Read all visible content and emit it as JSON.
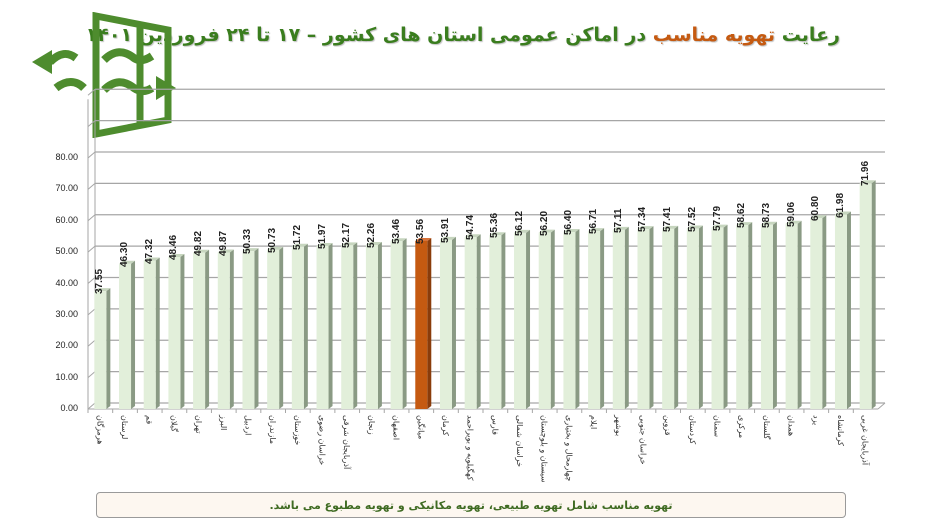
{
  "header": {
    "title_part1": "رعایت",
    "title_accent": "تهویه مناسب",
    "title_part2": "در اماکن عمومی استان های کشور  –  ۱۷ تا ۲۴ فروردین ۱۴۰۱"
  },
  "logo": {
    "icon": "ventilation-window-icon",
    "color": "#4e8c2e"
  },
  "footer": {
    "note": "تهویه مناسب شامل تهویه طبیعی، تهویه مکانیکی و تهویه مطبوع می باشد."
  },
  "colors": {
    "bar_default": "#e2efda",
    "bar_side": "#8a9a84",
    "bar_highlight": "#c55a11",
    "bar_highlight_side": "#8a3c0b",
    "grid": "#a6a6a6",
    "title_green": "#3a7d1e",
    "title_accent": "#c55a11"
  },
  "chart_data": {
    "type": "bar",
    "title": "رعایت تهویه مناسب در اماکن عمومی استان های کشور – ۱۷ تا ۲۴ فروردین ۱۴۰۱",
    "xlabel": "",
    "ylabel": "",
    "ylim": [
      0,
      100
    ],
    "yticks": [
      "0.00",
      "10.00",
      "20.00",
      "30.00",
      "40.00",
      "50.00",
      "60.00",
      "70.00",
      "80.00"
    ],
    "grid": true,
    "legend": null,
    "highlight_index": 13,
    "categories": [
      "هرمزگان",
      "لرستان",
      "قم",
      "گیلان",
      "تهران",
      "البرز",
      "اردبیل",
      "مازندران",
      "خوزستان",
      "خراسان رضوی",
      "آذربایجان شرقی",
      "زنجان",
      "اصفهان",
      "میانگین",
      "کرمان",
      "کهگیلویه و بویراحمد",
      "فارس",
      "خراسان شمالی",
      "سیستان و بلوچستان",
      "چهارمحال و بختیاری",
      "ایلام",
      "بوشهر",
      "خراسان جنوبی",
      "قزوین",
      "کردستان",
      "سمنان",
      "مرکزی",
      "گلستان",
      "همدان",
      "یزد",
      "کرمانشاه",
      "آذربایجان غربی"
    ],
    "values": [
      37.55,
      46.3,
      47.32,
      48.46,
      49.82,
      49.87,
      50.33,
      50.73,
      51.72,
      51.97,
      52.17,
      52.26,
      53.46,
      53.56,
      53.91,
      54.74,
      55.36,
      56.12,
      56.2,
      56.4,
      56.71,
      57.11,
      57.34,
      57.41,
      57.52,
      57.79,
      58.62,
      58.73,
      59.06,
      60.8,
      61.98,
      71.96
    ],
    "value_labels": [
      "37.55",
      "46.30",
      "47.32",
      "48.46",
      "49.82",
      "49.87",
      "50.33",
      "50.73",
      "51.72",
      "51.97",
      "52.17",
      "52.26",
      "53.46",
      "53.56",
      "53.91",
      "54.74",
      "55.36",
      "56.12",
      "56.20",
      "56.40",
      "56.71",
      "57.11",
      "57.34",
      "57.41",
      "57.52",
      "57.79",
      "58.62",
      "58.73",
      "59.06",
      "60.80",
      "61.98",
      "71.96"
    ]
  }
}
